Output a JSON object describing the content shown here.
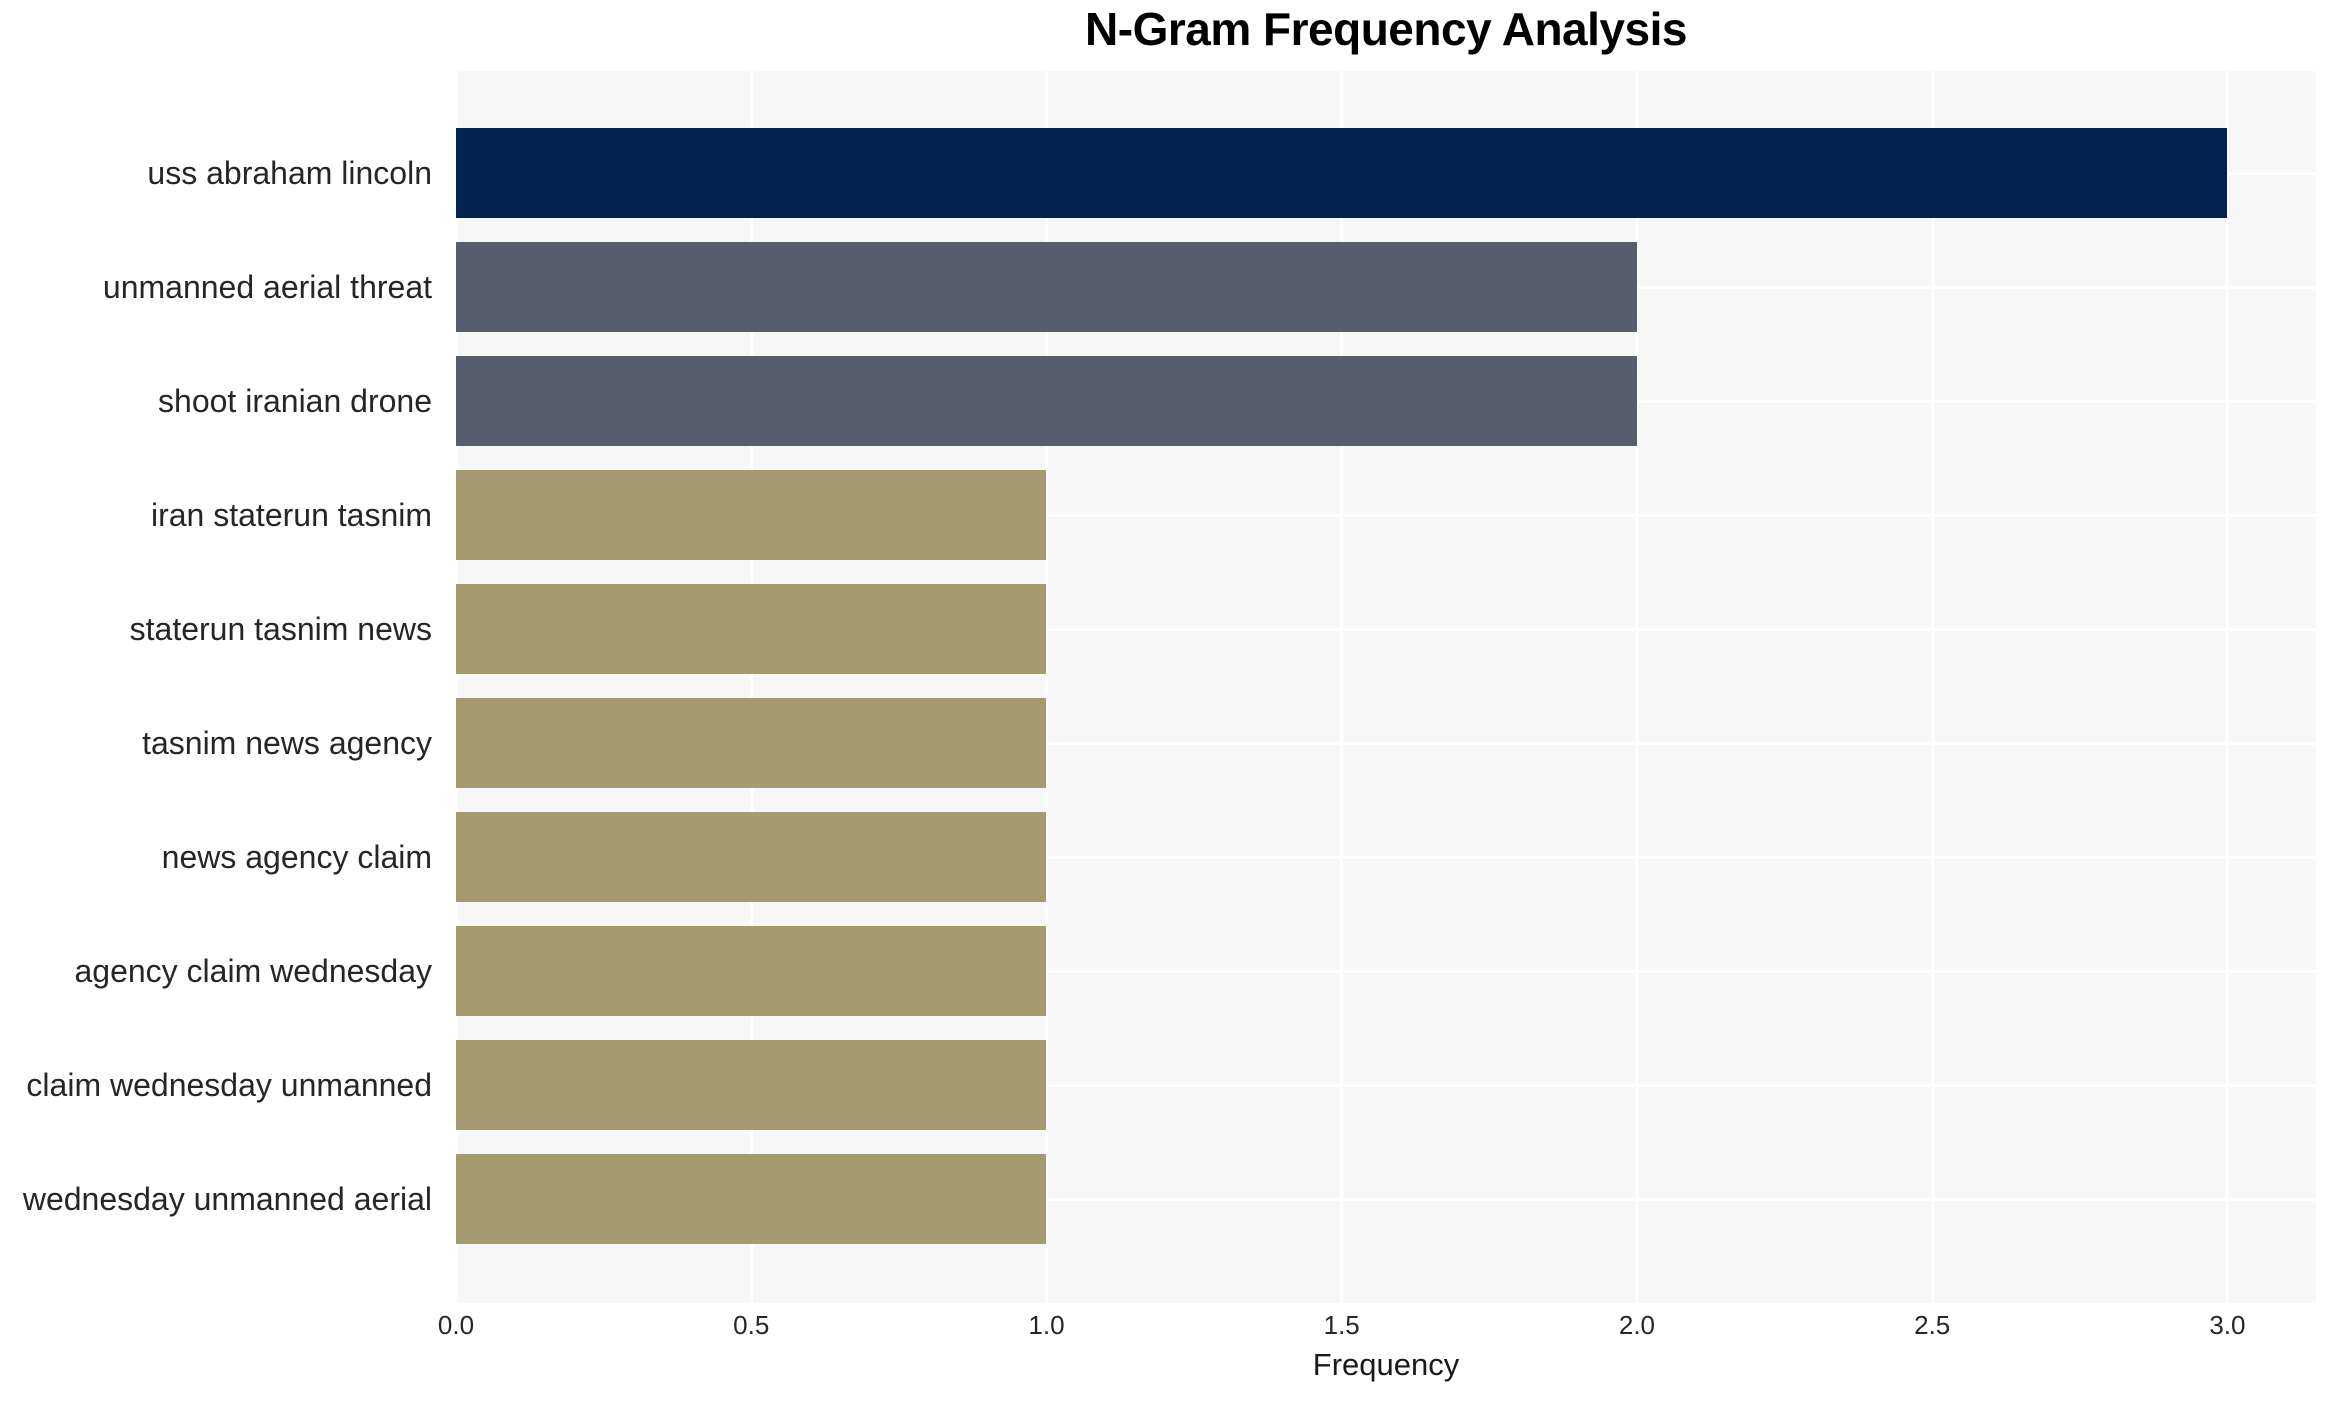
{
  "chart_data": {
    "type": "bar",
    "orientation": "horizontal",
    "title": "N-Gram Frequency Analysis",
    "xlabel": "Frequency",
    "ylabel": "",
    "categories": [
      "uss abraham lincoln",
      "unmanned aerial threat",
      "shoot iranian drone",
      "iran staterun tasnim",
      "staterun tasnim news",
      "tasnim news agency",
      "news agency claim",
      "agency claim wednesday",
      "claim wednesday unmanned",
      "wednesday unmanned aerial"
    ],
    "values": [
      3,
      2,
      2,
      1,
      1,
      1,
      1,
      1,
      1,
      1
    ],
    "bar_colors": [
      "#022350",
      "#565d6c",
      "#565d6c",
      "#a49b71",
      "#a49b71",
      "#a49b71",
      "#a49b71",
      "#a49b71",
      "#a49b71",
      "#a49b71"
    ],
    "xlim": [
      0,
      3.15
    ],
    "xticks": {
      "values": [
        0,
        0.5,
        1.0,
        1.5,
        2.0,
        2.5,
        3.0
      ],
      "labels": [
        "0.0",
        "0.5",
        "1.0",
        "1.5",
        "2.0",
        "2.5",
        "3.0"
      ]
    },
    "grid": "major vertical and horizontal white gridlines on light panel",
    "legend_position": "none"
  },
  "colors": {
    "navy": "#022350",
    "slate": "#565d6c",
    "khaki": "#a49b71",
    "panel_background": "#f7f7f7",
    "gridline": "#ffffff",
    "label_text": "#262626",
    "title_text": "#000000"
  }
}
